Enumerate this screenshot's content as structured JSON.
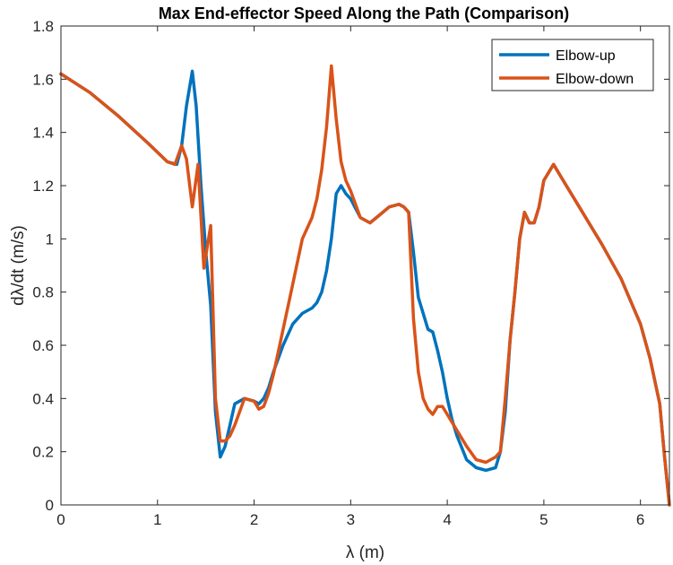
{
  "chart_data": {
    "type": "line",
    "title": "Max End-effector Speed Along the Path (Comparison)",
    "xlabel": "λ (m)",
    "ylabel": "dλ/dt  (m/s)",
    "xlim": [
      0,
      6.3
    ],
    "ylim": [
      0,
      1.8
    ],
    "xticks": [
      0,
      1,
      2,
      3,
      4,
      5,
      6
    ],
    "yticks": [
      0,
      0.2,
      0.4,
      0.6,
      0.8,
      1,
      1.2,
      1.4,
      1.6,
      1.8
    ],
    "xtick_labels": [
      "0",
      "1",
      "2",
      "3",
      "4",
      "5",
      "6"
    ],
    "ytick_labels": [
      "0",
      "0.2",
      "0.4",
      "0.6",
      "0.8",
      "1",
      "1.2",
      "1.4",
      "1.6",
      "1.8"
    ],
    "grid": false,
    "legend_position": "top-right",
    "series": [
      {
        "name": "Elbow-up",
        "color": "#0072bd",
        "x": [
          0,
          0.3,
          0.6,
          0.9,
          1.1,
          1.2,
          1.25,
          1.3,
          1.36,
          1.4,
          1.45,
          1.5,
          1.55,
          1.6,
          1.65,
          1.7,
          1.75,
          1.8,
          1.9,
          2.0,
          2.05,
          2.1,
          2.15,
          2.2,
          2.3,
          2.4,
          2.5,
          2.6,
          2.65,
          2.7,
          2.75,
          2.8,
          2.85,
          2.9,
          2.95,
          3.0,
          3.1,
          3.2,
          3.3,
          3.4,
          3.5,
          3.55,
          3.6,
          3.65,
          3.7,
          3.75,
          3.8,
          3.85,
          3.9,
          3.95,
          4.0,
          4.05,
          4.1,
          4.2,
          4.3,
          4.4,
          4.5,
          4.55,
          4.6,
          4.65,
          4.7,
          4.75,
          4.8,
          4.85,
          4.9,
          4.95,
          5.0,
          5.1,
          5.2,
          5.4,
          5.6,
          5.8,
          6.0,
          6.1,
          6.2,
          6.25,
          6.3
        ],
        "y": [
          1.62,
          1.55,
          1.46,
          1.36,
          1.29,
          1.28,
          1.35,
          1.5,
          1.63,
          1.5,
          1.2,
          0.95,
          0.75,
          0.35,
          0.18,
          0.22,
          0.3,
          0.38,
          0.4,
          0.39,
          0.38,
          0.4,
          0.44,
          0.5,
          0.6,
          0.68,
          0.72,
          0.74,
          0.76,
          0.8,
          0.88,
          1.0,
          1.17,
          1.2,
          1.17,
          1.15,
          1.08,
          1.06,
          1.09,
          1.12,
          1.13,
          1.12,
          1.1,
          0.95,
          0.78,
          0.72,
          0.66,
          0.65,
          0.58,
          0.5,
          0.4,
          0.32,
          0.26,
          0.17,
          0.14,
          0.13,
          0.14,
          0.2,
          0.35,
          0.62,
          0.8,
          1.0,
          1.1,
          1.06,
          1.06,
          1.12,
          1.22,
          1.28,
          1.22,
          1.1,
          0.98,
          0.85,
          0.68,
          0.55,
          0.38,
          0.18,
          0.0
        ]
      },
      {
        "name": "Elbow-down",
        "color": "#d95319",
        "x": [
          0,
          0.3,
          0.6,
          0.9,
          1.1,
          1.18,
          1.25,
          1.3,
          1.36,
          1.42,
          1.48,
          1.55,
          1.6,
          1.65,
          1.7,
          1.75,
          1.8,
          1.9,
          2.0,
          2.05,
          2.1,
          2.15,
          2.2,
          2.3,
          2.4,
          2.5,
          2.6,
          2.65,
          2.7,
          2.75,
          2.8,
          2.85,
          2.9,
          2.95,
          3.0,
          3.1,
          3.2,
          3.3,
          3.4,
          3.5,
          3.55,
          3.6,
          3.65,
          3.7,
          3.75,
          3.8,
          3.85,
          3.9,
          3.95,
          4.0,
          4.1,
          4.2,
          4.3,
          4.4,
          4.5,
          4.55,
          4.6,
          4.65,
          4.7,
          4.75,
          4.8,
          4.85,
          4.9,
          4.95,
          5.0,
          5.1,
          5.2,
          5.4,
          5.6,
          5.8,
          6.0,
          6.1,
          6.2,
          6.25,
          6.3
        ],
        "y": [
          1.62,
          1.55,
          1.46,
          1.36,
          1.29,
          1.28,
          1.35,
          1.3,
          1.12,
          1.28,
          0.89,
          1.05,
          0.4,
          0.24,
          0.24,
          0.26,
          0.3,
          0.4,
          0.39,
          0.36,
          0.37,
          0.42,
          0.49,
          0.66,
          0.83,
          1.0,
          1.08,
          1.15,
          1.26,
          1.42,
          1.65,
          1.45,
          1.29,
          1.22,
          1.18,
          1.08,
          1.06,
          1.09,
          1.12,
          1.13,
          1.12,
          1.1,
          0.7,
          0.5,
          0.4,
          0.36,
          0.34,
          0.37,
          0.37,
          0.34,
          0.28,
          0.22,
          0.17,
          0.16,
          0.18,
          0.2,
          0.4,
          0.62,
          0.8,
          1.0,
          1.1,
          1.06,
          1.06,
          1.12,
          1.22,
          1.28,
          1.22,
          1.1,
          0.98,
          0.85,
          0.68,
          0.55,
          0.38,
          0.18,
          0.0
        ]
      }
    ]
  }
}
